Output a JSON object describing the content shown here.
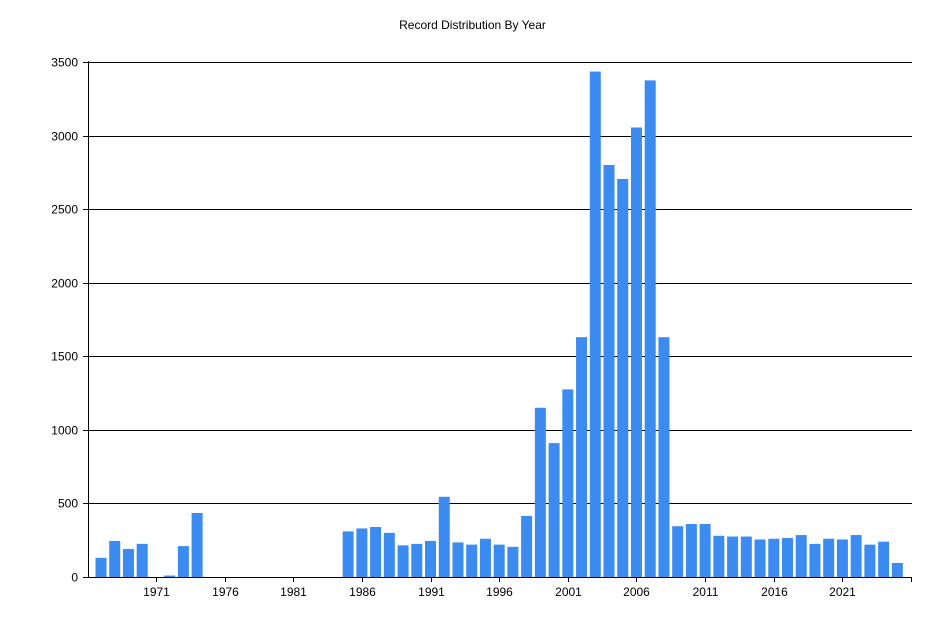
{
  "chart_data": {
    "type": "bar",
    "title": "Record Distribution By Year",
    "xlabel": "",
    "ylabel": "",
    "ylim": [
      0,
      3500
    ],
    "yticks": [
      0,
      500,
      1000,
      1500,
      2000,
      2500,
      3000,
      3500
    ],
    "xtick_labels": [
      "1971",
      "1976",
      "1981",
      "1986",
      "1991",
      "1996",
      "2001",
      "2006",
      "2011",
      "2016",
      "2021"
    ],
    "grid": true,
    "bar_color": "#3c8bf0",
    "categories": [
      1967,
      1968,
      1969,
      1970,
      1971,
      1972,
      1973,
      1974,
      1975,
      1976,
      1977,
      1978,
      1979,
      1980,
      1981,
      1982,
      1983,
      1984,
      1985,
      1986,
      1987,
      1988,
      1989,
      1990,
      1991,
      1992,
      1993,
      1994,
      1995,
      1996,
      1997,
      1998,
      1999,
      2000,
      2001,
      2002,
      2003,
      2004,
      2005,
      2006,
      2007,
      2008,
      2009,
      2010,
      2011,
      2012,
      2013,
      2014,
      2015,
      2016,
      2017,
      2018,
      2019,
      2020,
      2021,
      2022,
      2023,
      2024,
      2025
    ],
    "values": [
      130,
      245,
      190,
      225,
      0,
      10,
      210,
      435,
      0,
      0,
      0,
      0,
      0,
      0,
      0,
      0,
      0,
      0,
      310,
      330,
      340,
      300,
      215,
      225,
      245,
      545,
      235,
      220,
      260,
      220,
      205,
      415,
      1150,
      910,
      1275,
      1630,
      3435,
      2800,
      2705,
      3055,
      3375,
      1630,
      345,
      360,
      360,
      280,
      275,
      275,
      255,
      260,
      265,
      285,
      225,
      260,
      255,
      285,
      220,
      240,
      95
    ]
  }
}
